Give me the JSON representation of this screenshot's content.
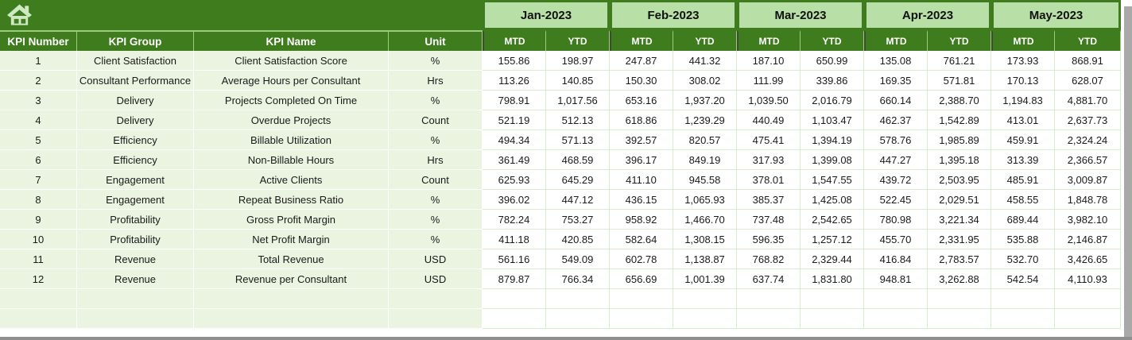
{
  "table": {
    "columns": {
      "kpi_number": "KPI Number",
      "kpi_group": "KPI Group",
      "kpi_name": "KPI Name",
      "unit": "Unit"
    },
    "months": [
      {
        "label": "Jan-2023"
      },
      {
        "label": "Feb-2023"
      },
      {
        "label": "Mar-2023"
      },
      {
        "label": "Apr-2023"
      },
      {
        "label": "May-2023"
      }
    ],
    "sub_headers": {
      "mtd": "MTD",
      "ytd": "YTD"
    },
    "rows": [
      {
        "kpi_number": "1",
        "kpi_group": "Client Satisfaction",
        "kpi_name": "Client Satisfaction Score",
        "unit": "%",
        "values": [
          "155.86",
          "198.97",
          "247.87",
          "441.32",
          "187.10",
          "650.99",
          "135.08",
          "761.21",
          "173.93",
          "868.91"
        ]
      },
      {
        "kpi_number": "2",
        "kpi_group": "Consultant Performance",
        "kpi_name": "Average Hours per Consultant",
        "unit": "Hrs",
        "values": [
          "113.26",
          "140.85",
          "150.30",
          "308.02",
          "111.99",
          "339.86",
          "169.35",
          "571.81",
          "170.13",
          "628.07"
        ]
      },
      {
        "kpi_number": "3",
        "kpi_group": "Delivery",
        "kpi_name": "Projects Completed On Time",
        "unit": "%",
        "values": [
          "798.91",
          "1,017.56",
          "653.16",
          "1,937.20",
          "1,039.50",
          "2,016.79",
          "660.14",
          "2,388.70",
          "1,194.83",
          "4,881.70"
        ]
      },
      {
        "kpi_number": "4",
        "kpi_group": "Delivery",
        "kpi_name": "Overdue Projects",
        "unit": "Count",
        "values": [
          "521.19",
          "512.13",
          "618.86",
          "1,239.29",
          "440.49",
          "1,103.47",
          "462.37",
          "1,542.89",
          "413.01",
          "2,637.73"
        ]
      },
      {
        "kpi_number": "5",
        "kpi_group": "Efficiency",
        "kpi_name": "Billable Utilization",
        "unit": "%",
        "values": [
          "494.34",
          "571.13",
          "392.57",
          "820.57",
          "475.41",
          "1,394.19",
          "578.76",
          "1,985.89",
          "459.91",
          "2,324.24"
        ]
      },
      {
        "kpi_number": "6",
        "kpi_group": "Efficiency",
        "kpi_name": "Non-Billable Hours",
        "unit": "Hrs",
        "values": [
          "361.49",
          "468.59",
          "396.17",
          "849.19",
          "317.93",
          "1,399.08",
          "447.27",
          "1,395.18",
          "313.39",
          "2,366.57"
        ]
      },
      {
        "kpi_number": "7",
        "kpi_group": "Engagement",
        "kpi_name": "Active Clients",
        "unit": "Count",
        "values": [
          "625.93",
          "645.29",
          "411.10",
          "945.58",
          "378.01",
          "1,547.55",
          "439.72",
          "2,503.95",
          "485.91",
          "3,009.87"
        ]
      },
      {
        "kpi_number": "8",
        "kpi_group": "Engagement",
        "kpi_name": "Repeat Business Ratio",
        "unit": "%",
        "values": [
          "396.02",
          "447.12",
          "436.15",
          "1,065.93",
          "385.37",
          "1,425.08",
          "522.45",
          "2,029.51",
          "458.55",
          "1,848.78"
        ]
      },
      {
        "kpi_number": "9",
        "kpi_group": "Profitability",
        "kpi_name": "Gross Profit Margin",
        "unit": "%",
        "values": [
          "782.24",
          "753.27",
          "958.92",
          "1,466.70",
          "737.48",
          "2,542.65",
          "780.98",
          "3,221.34",
          "689.44",
          "3,982.10"
        ]
      },
      {
        "kpi_number": "10",
        "kpi_group": "Profitability",
        "kpi_name": "Net Profit Margin",
        "unit": "%",
        "values": [
          "411.18",
          "420.85",
          "582.64",
          "1,308.15",
          "596.35",
          "1,257.12",
          "455.70",
          "2,331.95",
          "535.88",
          "2,146.87"
        ]
      },
      {
        "kpi_number": "11",
        "kpi_group": "Revenue",
        "kpi_name": "Total Revenue",
        "unit": "USD",
        "values": [
          "561.16",
          "549.09",
          "602.78",
          "1,138.87",
          "768.82",
          "2,329.44",
          "416.84",
          "2,783.57",
          "532.70",
          "3,426.65"
        ]
      },
      {
        "kpi_number": "12",
        "kpi_group": "Revenue",
        "kpi_name": "Revenue per Consultant",
        "unit": "USD",
        "values": [
          "879.87",
          "766.34",
          "656.69",
          "1,001.39",
          "637.74",
          "1,831.80",
          "948.81",
          "3,262.88",
          "542.54",
          "4,110.93"
        ]
      }
    ],
    "empty_row_count": 2
  },
  "icons": {
    "home": "home-icon"
  },
  "colors": {
    "header_dark_green": "#3e7c1e",
    "month_light_green": "#b8e0a6",
    "row_tint_green": "#eaf4e1",
    "grid_line_green": "#d9ecd1",
    "home_icon_pale_green": "#cfe9c2",
    "chrome_gray": "#a9a9a9"
  }
}
